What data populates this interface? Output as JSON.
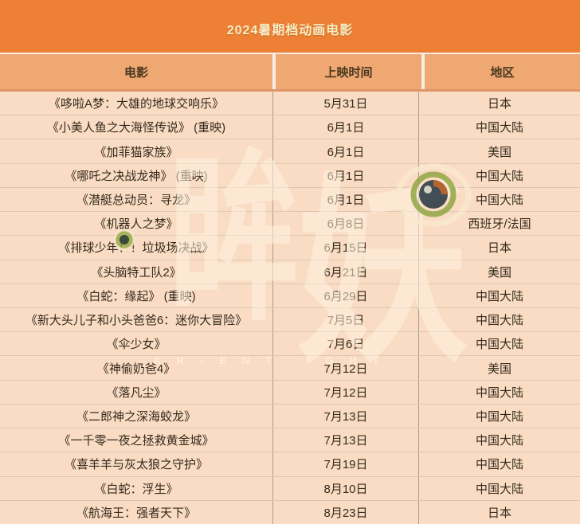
{
  "chart_data": {
    "type": "table",
    "title": "2024暑期档动画电影",
    "columns": [
      "电影",
      "上映时间",
      "地区"
    ],
    "rows": [
      [
        "《哆啦A梦：大雄的地球交响乐》",
        "5月31日",
        "日本"
      ],
      [
        "《小美人鱼之大海怪传说》 (重映)",
        "6月1日",
        "中国大陆"
      ],
      [
        "《加菲猫家族》",
        "6月1日",
        "美国"
      ],
      [
        "《哪吒之决战龙神》 (重映)",
        "6月1日",
        "中国大陆"
      ],
      [
        "《潜艇总动员：寻龙》",
        "6月1日",
        "中国大陆"
      ],
      [
        "《机器人之梦》",
        "6月8日",
        "西班牙/法国"
      ],
      [
        "《排球少年！！垃圾场决战》",
        "6月15日",
        "日本"
      ],
      [
        "《头脑特工队2》",
        "6月21日",
        "美国"
      ],
      [
        "《白蛇：缘起》 (重映)",
        "6月29日",
        "中国大陆"
      ],
      [
        "《新大头儿子和小头爸爸6：迷你大冒险》",
        "7月5日",
        "中国大陆"
      ],
      [
        "《伞少女》",
        "7月6日",
        "中国大陆"
      ],
      [
        "《神偷奶爸4》",
        "7月12日",
        "美国"
      ],
      [
        "《落凡尘》",
        "7月12日",
        "中国大陆"
      ],
      [
        "《二郎神之深海蛟龙》",
        "7月13日",
        "中国大陆"
      ],
      [
        "《一千零一夜之拯救黄金城》",
        "7月13日",
        "中国大陆"
      ],
      [
        "《喜羊羊与灰太狼之守护》",
        "7月19日",
        "中国大陆"
      ],
      [
        "《白蛇：浮生》",
        "8月10日",
        "中国大陆"
      ],
      [
        "《航海王：强者天下》",
        "8月23日",
        "日本"
      ]
    ]
  },
  "watermark": {
    "glyph_left": "眸",
    "glyph_right": "妖",
    "letters": "AR-ENT IGHT"
  },
  "colors": {
    "title_bar": "#ed8034",
    "title_text": "#f8eec8",
    "header_bg": "#f0a873",
    "header_text": "#47361f",
    "row_bg": "#fadcc4",
    "row_text": "#342a1c"
  }
}
